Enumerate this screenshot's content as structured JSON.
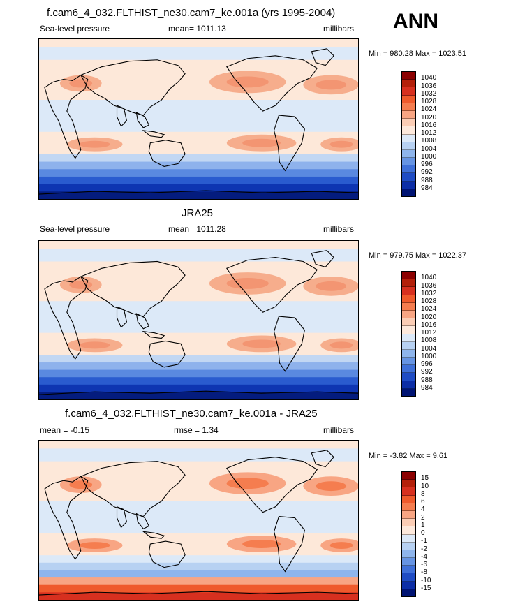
{
  "season": "ANN",
  "panels": [
    {
      "title": "f.cam6_4_032.FLTHIST_ne30.cam7_ke.001a (yrs 1995-2004)",
      "left_label": "Sea-level pressure",
      "center_label": "mean= 1011.13",
      "right_label": "millibars",
      "minmax": "Min = 980.28 Max = 1023.51",
      "colorbar": {
        "levels": [
          "1040",
          "1036",
          "1032",
          "1028",
          "1024",
          "1020",
          "1016",
          "1012",
          "1008",
          "1004",
          "1000",
          "996",
          "992",
          "988",
          "984"
        ],
        "colors": [
          "#8b0000",
          "#b3200a",
          "#d7301f",
          "#ef5a2c",
          "#f57d4f",
          "#f8a583",
          "#fbcdb5",
          "#fde9dc",
          "#dce9f8",
          "#b7d1f2",
          "#8eb5ec",
          "#6694e3",
          "#3f70d8",
          "#1f4cc4",
          "#0c2ea6",
          "#001473"
        ]
      },
      "map": {
        "bg": "#fde8d9",
        "south_colors": [
          "#c2d7f3",
          "#8eb2ec",
          "#5a89e0",
          "#2a5bcf",
          "#0e35b2",
          "#041c7e"
        ],
        "highs_color": "#f6ad8c",
        "highs_inner": "#f39572"
      }
    },
    {
      "title": "JRA25",
      "left_label": "Sea-level pressure",
      "center_label": "mean= 1011.28",
      "right_label": "millibars",
      "minmax": "Min = 979.75 Max = 1022.37",
      "colorbar": {
        "levels": [
          "1040",
          "1036",
          "1032",
          "1028",
          "1024",
          "1020",
          "1016",
          "1012",
          "1008",
          "1004",
          "1000",
          "996",
          "992",
          "988",
          "984"
        ],
        "colors": [
          "#8b0000",
          "#b3200a",
          "#d7301f",
          "#ef5a2c",
          "#f57d4f",
          "#f8a583",
          "#fbcdb5",
          "#fde9dc",
          "#dce9f8",
          "#b7d1f2",
          "#8eb5ec",
          "#6694e3",
          "#3f70d8",
          "#1f4cc4",
          "#0c2ea6",
          "#001473"
        ]
      },
      "map": {
        "bg": "#fde8d9",
        "south_colors": [
          "#c2d7f3",
          "#8eb2ec",
          "#5a89e0",
          "#2a5bcf",
          "#0e35b2",
          "#041c7e"
        ],
        "highs_color": "#f6ad8c",
        "highs_inner": "#f39572"
      }
    },
    {
      "title": "f.cam6_4_032.FLTHIST_ne30.cam7_ke.001a - JRA25",
      "left_label": "mean =  -0.15",
      "center_label": "rmse =   1.34",
      "right_label": "millibars",
      "minmax": "Min =  -3.82 Max =   9.61",
      "colorbar": {
        "levels": [
          "15",
          "10",
          "8",
          "6",
          "4",
          "2",
          "1",
          "0",
          "-1",
          "-2",
          "-4",
          "-6",
          "-8",
          "-10",
          "-15"
        ],
        "colors": [
          "#8b0000",
          "#b3200a",
          "#d7301f",
          "#ef5a2c",
          "#f57d4f",
          "#f8a583",
          "#fbcdb5",
          "#fde9dc",
          "#dce9f8",
          "#b7d1f2",
          "#8eb5ec",
          "#6694e3",
          "#3f70d8",
          "#1f4cc4",
          "#0c2ea6",
          "#001473"
        ]
      },
      "map": {
        "bg": "#fde8d9",
        "south_colors": [
          "#dce9f8",
          "#b7d1f2",
          "#8eb5ec",
          "#f8a583",
          "#ef5a2c",
          "#d7301f"
        ],
        "highs_color": "#f8a583",
        "highs_inner": "#f57d4f"
      }
    }
  ]
}
